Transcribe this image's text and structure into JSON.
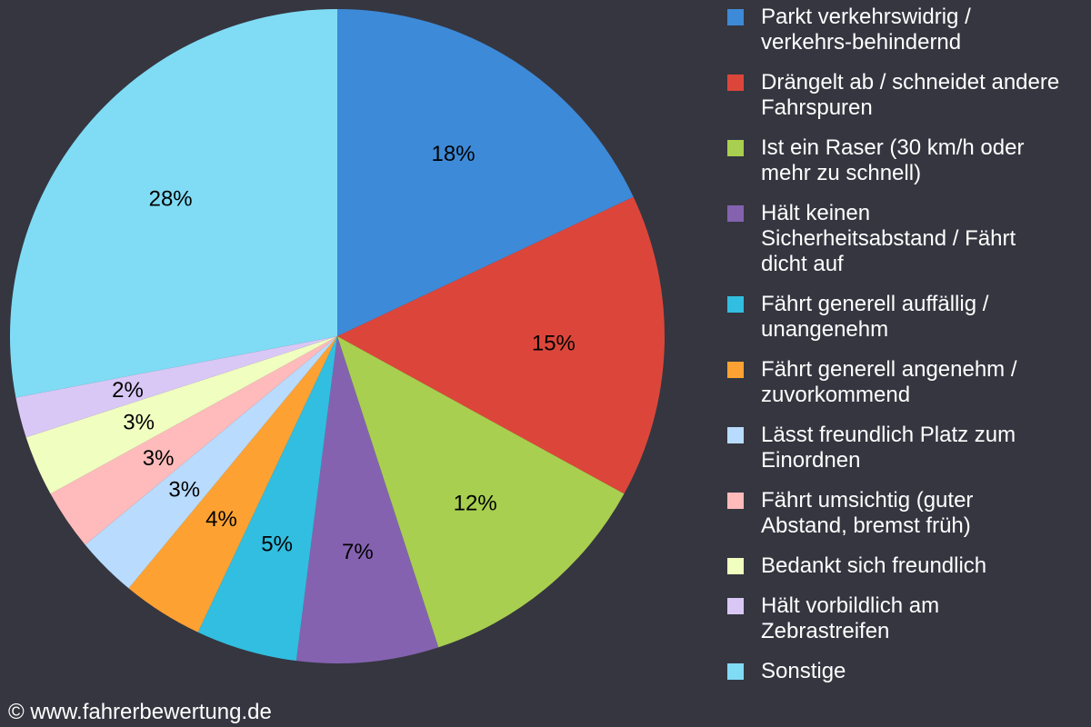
{
  "chart_data": {
    "type": "pie",
    "start": "top",
    "direction": "clockwise",
    "categories": [
      "Parkt verkehrswidrig /\nverkehrs-behindernd",
      "Drängelt ab / schneidet andere\nFahrspuren",
      "Ist ein Raser (30 km/h oder\nmehr zu schnell)",
      "Hält keinen\nSicherheitsabstand / Fährt\ndicht auf",
      "Fährt generell auffällig /\nunangenehm",
      "Fährt generell angenehm /\nzuvorkommend",
      "Lässt freundlich Platz zum\nEinordnen",
      "Fährt umsichtig (guter\nAbstand, bremst früh)",
      "Bedankt sich freundlich",
      "Hält vorbildlich am\nZebrastreifen",
      "Sonstige"
    ],
    "values": [
      18,
      15,
      12,
      7,
      5,
      4,
      3,
      3,
      3,
      2,
      28
    ],
    "data_labels": [
      "18%",
      "15%",
      "12%",
      "7%",
      "5%",
      "4%",
      "3%",
      "3%",
      "3%",
      "2%",
      "28%"
    ],
    "colors": [
      "#3d8ad8",
      "#dc463a",
      "#a8cf4f",
      "#8562b0",
      "#31bee0",
      "#fda232",
      "#b9dbfd",
      "#ffbbbb",
      "#f0fec0",
      "#d9c8f5",
      "#80dcf5"
    ],
    "legend_position": "right",
    "background": "#353640"
  },
  "footer": "© www.fahrerbewertung.de"
}
